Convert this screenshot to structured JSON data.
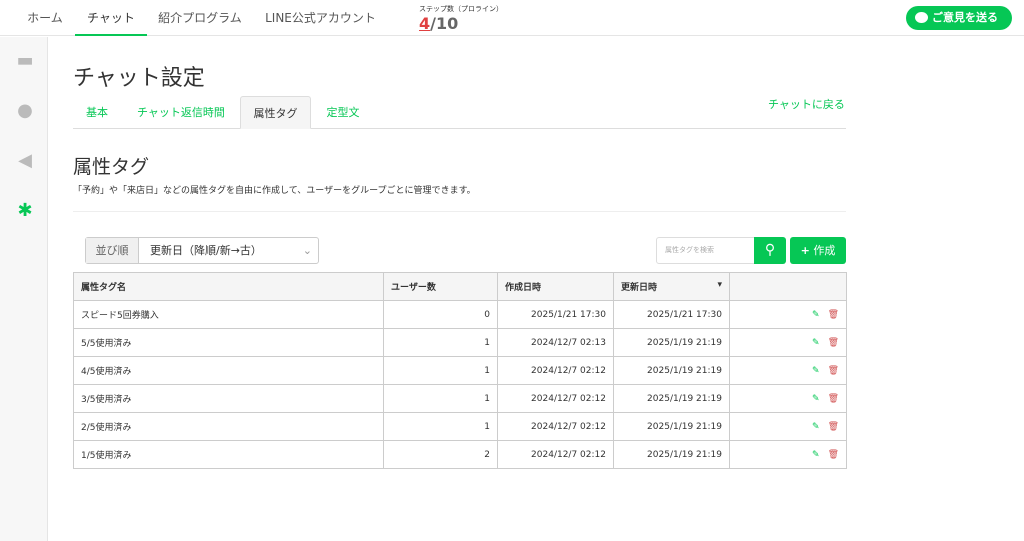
{
  "nav": {
    "items": [
      "ホーム",
      "チャット",
      "紹介プログラム",
      "LINE公式アカウント"
    ],
    "active": 1,
    "steps_label": "ステップ数（プロライン）",
    "steps_current": "4",
    "steps_total": "/10",
    "feedback": "ご意見を送る"
  },
  "page": {
    "title": "チャット設定",
    "tabs": [
      "基本",
      "チャット返信時間",
      "属性タグ",
      "定型文"
    ],
    "active_tab": 2,
    "back": "チャットに戻る",
    "section_title": "属性タグ",
    "description": "「予約」や「来店日」などの属性タグを自由に作成して、ユーザーをグループごとに管理できます。"
  },
  "toolbar": {
    "sort_label": "並び順",
    "sort_value": "更新日（降順/新→古）",
    "search_placeholder": "属性タグを検索",
    "create": "作成"
  },
  "table": {
    "headers": [
      "属性タグ名",
      "ユーザー数",
      "作成日時",
      "更新日時"
    ],
    "rows": [
      [
        "スピード5回券購入",
        "0",
        "2025/1/21 17:30",
        "2025/1/21 17:30"
      ],
      [
        "5/5使用済み",
        "1",
        "2024/12/7 02:13",
        "2025/1/19 21:19"
      ],
      [
        "4/5使用済み",
        "1",
        "2024/12/7 02:12",
        "2025/1/19 21:19"
      ],
      [
        "3/5使用済み",
        "1",
        "2024/12/7 02:12",
        "2025/1/19 21:19"
      ],
      [
        "2/5使用済み",
        "1",
        "2024/12/7 02:12",
        "2025/1/19 21:19"
      ],
      [
        "1/5使用済み",
        "2",
        "2024/12/7 02:12",
        "2025/1/19 21:19"
      ]
    ]
  },
  "colors": {
    "accent": "#06c755",
    "delete": "#d05050"
  }
}
